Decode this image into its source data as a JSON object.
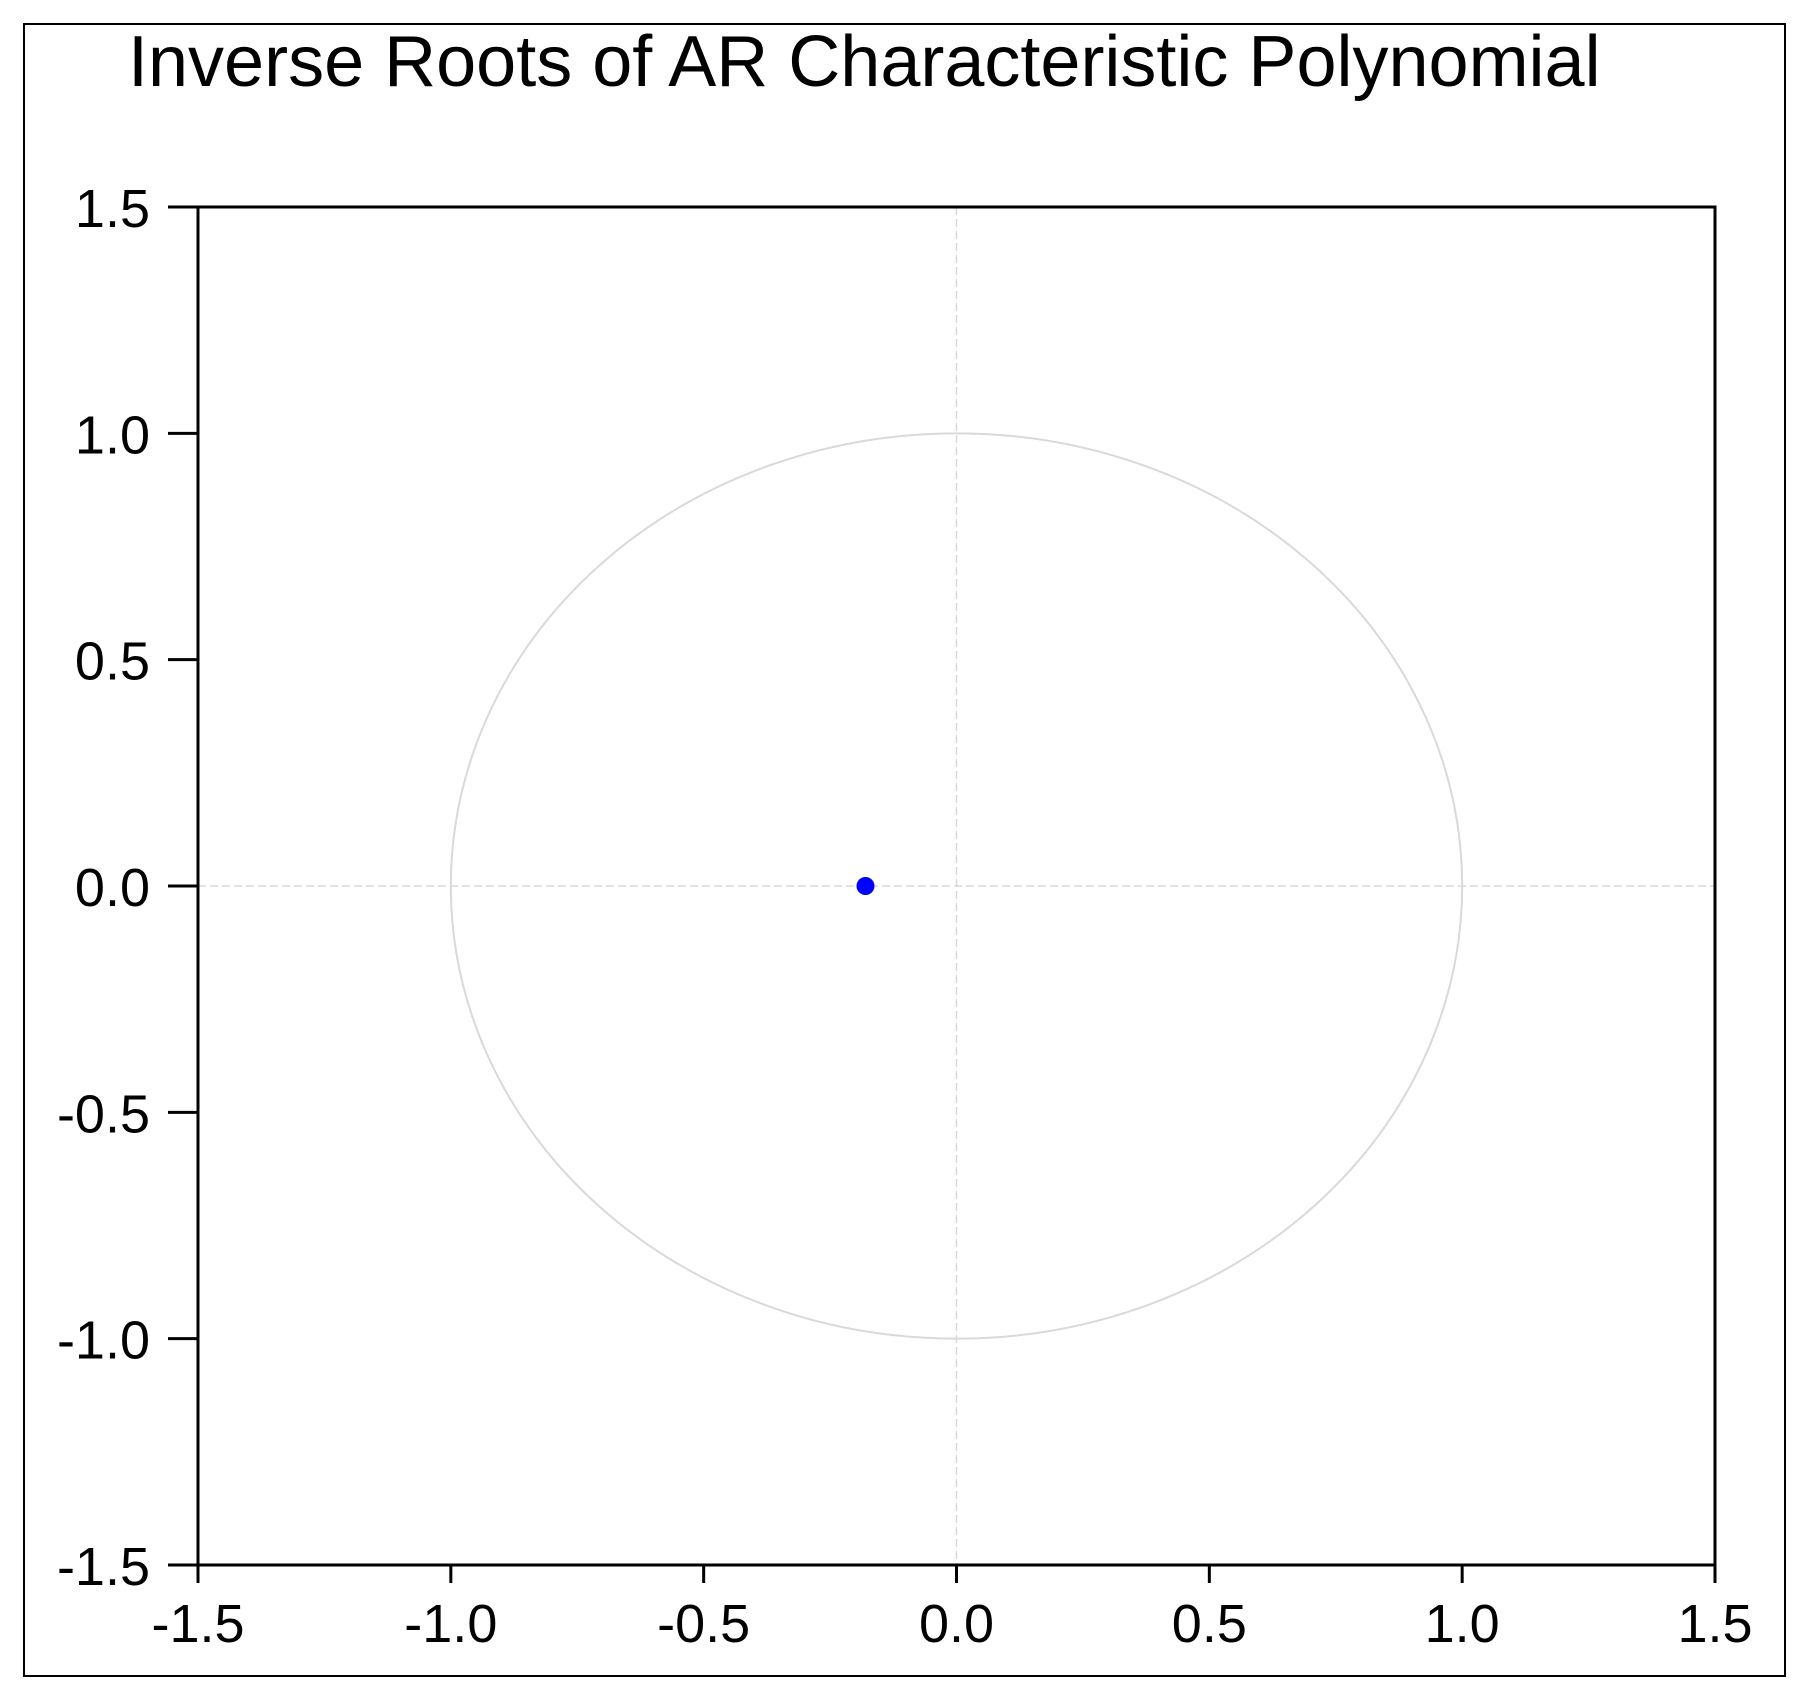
{
  "chart_data": {
    "type": "scatter",
    "title": "Inverse Roots of AR Characteristic Polynomial",
    "xlim": [
      -1.5,
      1.5
    ],
    "ylim": [
      -1.5,
      1.5
    ],
    "x_ticks": [
      "-1.5",
      "-1.0",
      "-0.5",
      "0.0",
      "0.5",
      "1.0",
      "1.5"
    ],
    "y_ticks": [
      "1.5",
      "1.0",
      "0.5",
      "0.0",
      "-0.5",
      "-1.0",
      "-1.5"
    ],
    "unit_circle": true,
    "zero_reference_lines": true,
    "series": [
      {
        "points": [
          {
            "x": -0.18,
            "y": 0.0
          }
        ],
        "color": "#0000ff"
      }
    ],
    "colors": {
      "axis": "#000000",
      "reference": "#d9d9d9",
      "point": "#0000ff"
    }
  }
}
